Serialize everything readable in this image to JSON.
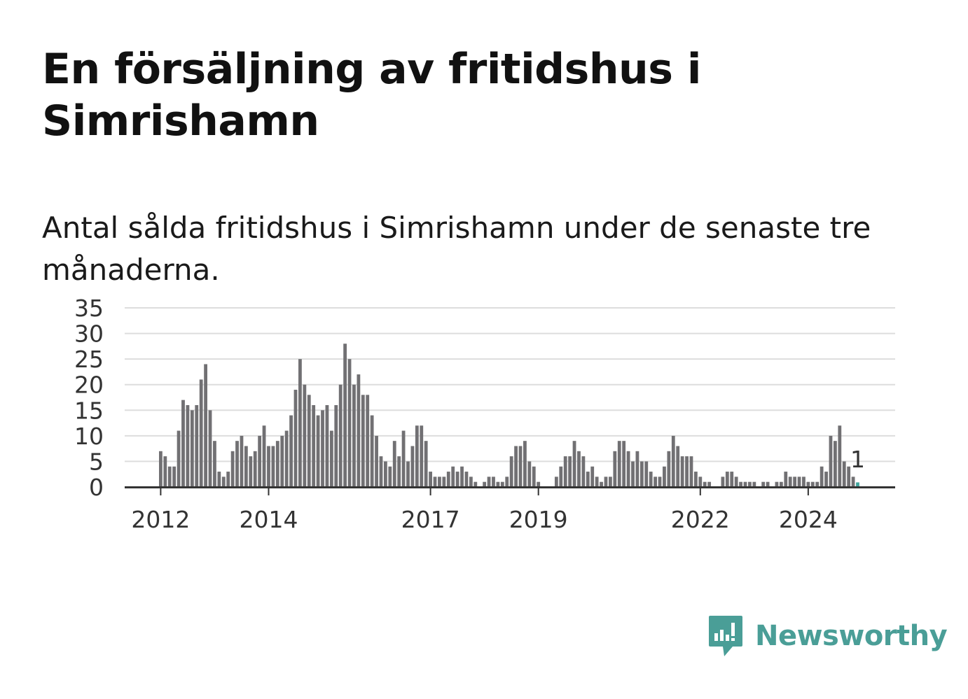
{
  "title": "En försäljning av fritidshus i Simrishamn",
  "subtitle": "Antal sålda fritidshus i Simrishamn under de senaste tre månaderna.",
  "logo": {
    "text": "Newsworthy",
    "icon": "chart-bubble-icon"
  },
  "colors": {
    "bar": "#717073",
    "highlight": "#3fa59d",
    "grid": "#dddddd",
    "axis": "#333333",
    "brand": "#4a9e97"
  },
  "chart_data": {
    "type": "bar",
    "ylim": [
      0,
      35
    ],
    "yticks": [
      "0",
      "5",
      "10",
      "15",
      "20",
      "25",
      "30",
      "35"
    ],
    "xticks": [
      {
        "label": "2012",
        "index": 0
      },
      {
        "label": "2014",
        "index": 24
      },
      {
        "label": "2017",
        "index": 60
      },
      {
        "label": "2019",
        "index": 84
      },
      {
        "label": "2022",
        "index": 120
      },
      {
        "label": "2024",
        "index": 144
      }
    ],
    "grid": true,
    "legend": "none",
    "highlight_label": "1",
    "values": [
      7,
      6,
      4,
      4,
      11,
      17,
      16,
      15,
      16,
      21,
      24,
      15,
      9,
      3,
      2,
      3,
      7,
      9,
      10,
      8,
      6,
      7,
      10,
      12,
      8,
      8,
      9,
      10,
      11,
      14,
      19,
      25,
      20,
      18,
      16,
      14,
      15,
      16,
      11,
      16,
      20,
      28,
      25,
      20,
      22,
      18,
      18,
      14,
      10,
      6,
      5,
      4,
      9,
      6,
      11,
      5,
      8,
      12,
      12,
      9,
      3,
      2,
      2,
      2,
      3,
      4,
      3,
      4,
      3,
      2,
      1,
      0,
      1,
      2,
      2,
      1,
      1,
      2,
      6,
      8,
      8,
      9,
      5,
      4,
      1,
      0,
      0,
      0,
      2,
      4,
      6,
      6,
      9,
      7,
      6,
      3,
      4,
      2,
      1,
      2,
      2,
      7,
      9,
      9,
      7,
      5,
      7,
      5,
      5,
      3,
      2,
      2,
      4,
      7,
      10,
      8,
      6,
      6,
      6,
      3,
      2,
      1,
      1,
      0,
      0,
      2,
      3,
      3,
      2,
      1,
      1,
      1,
      1,
      0,
      1,
      1,
      0,
      1,
      1,
      3,
      2,
      2,
      2,
      2,
      1,
      1,
      1,
      4,
      3,
      10,
      9,
      12,
      5,
      4,
      2,
      1
    ]
  }
}
